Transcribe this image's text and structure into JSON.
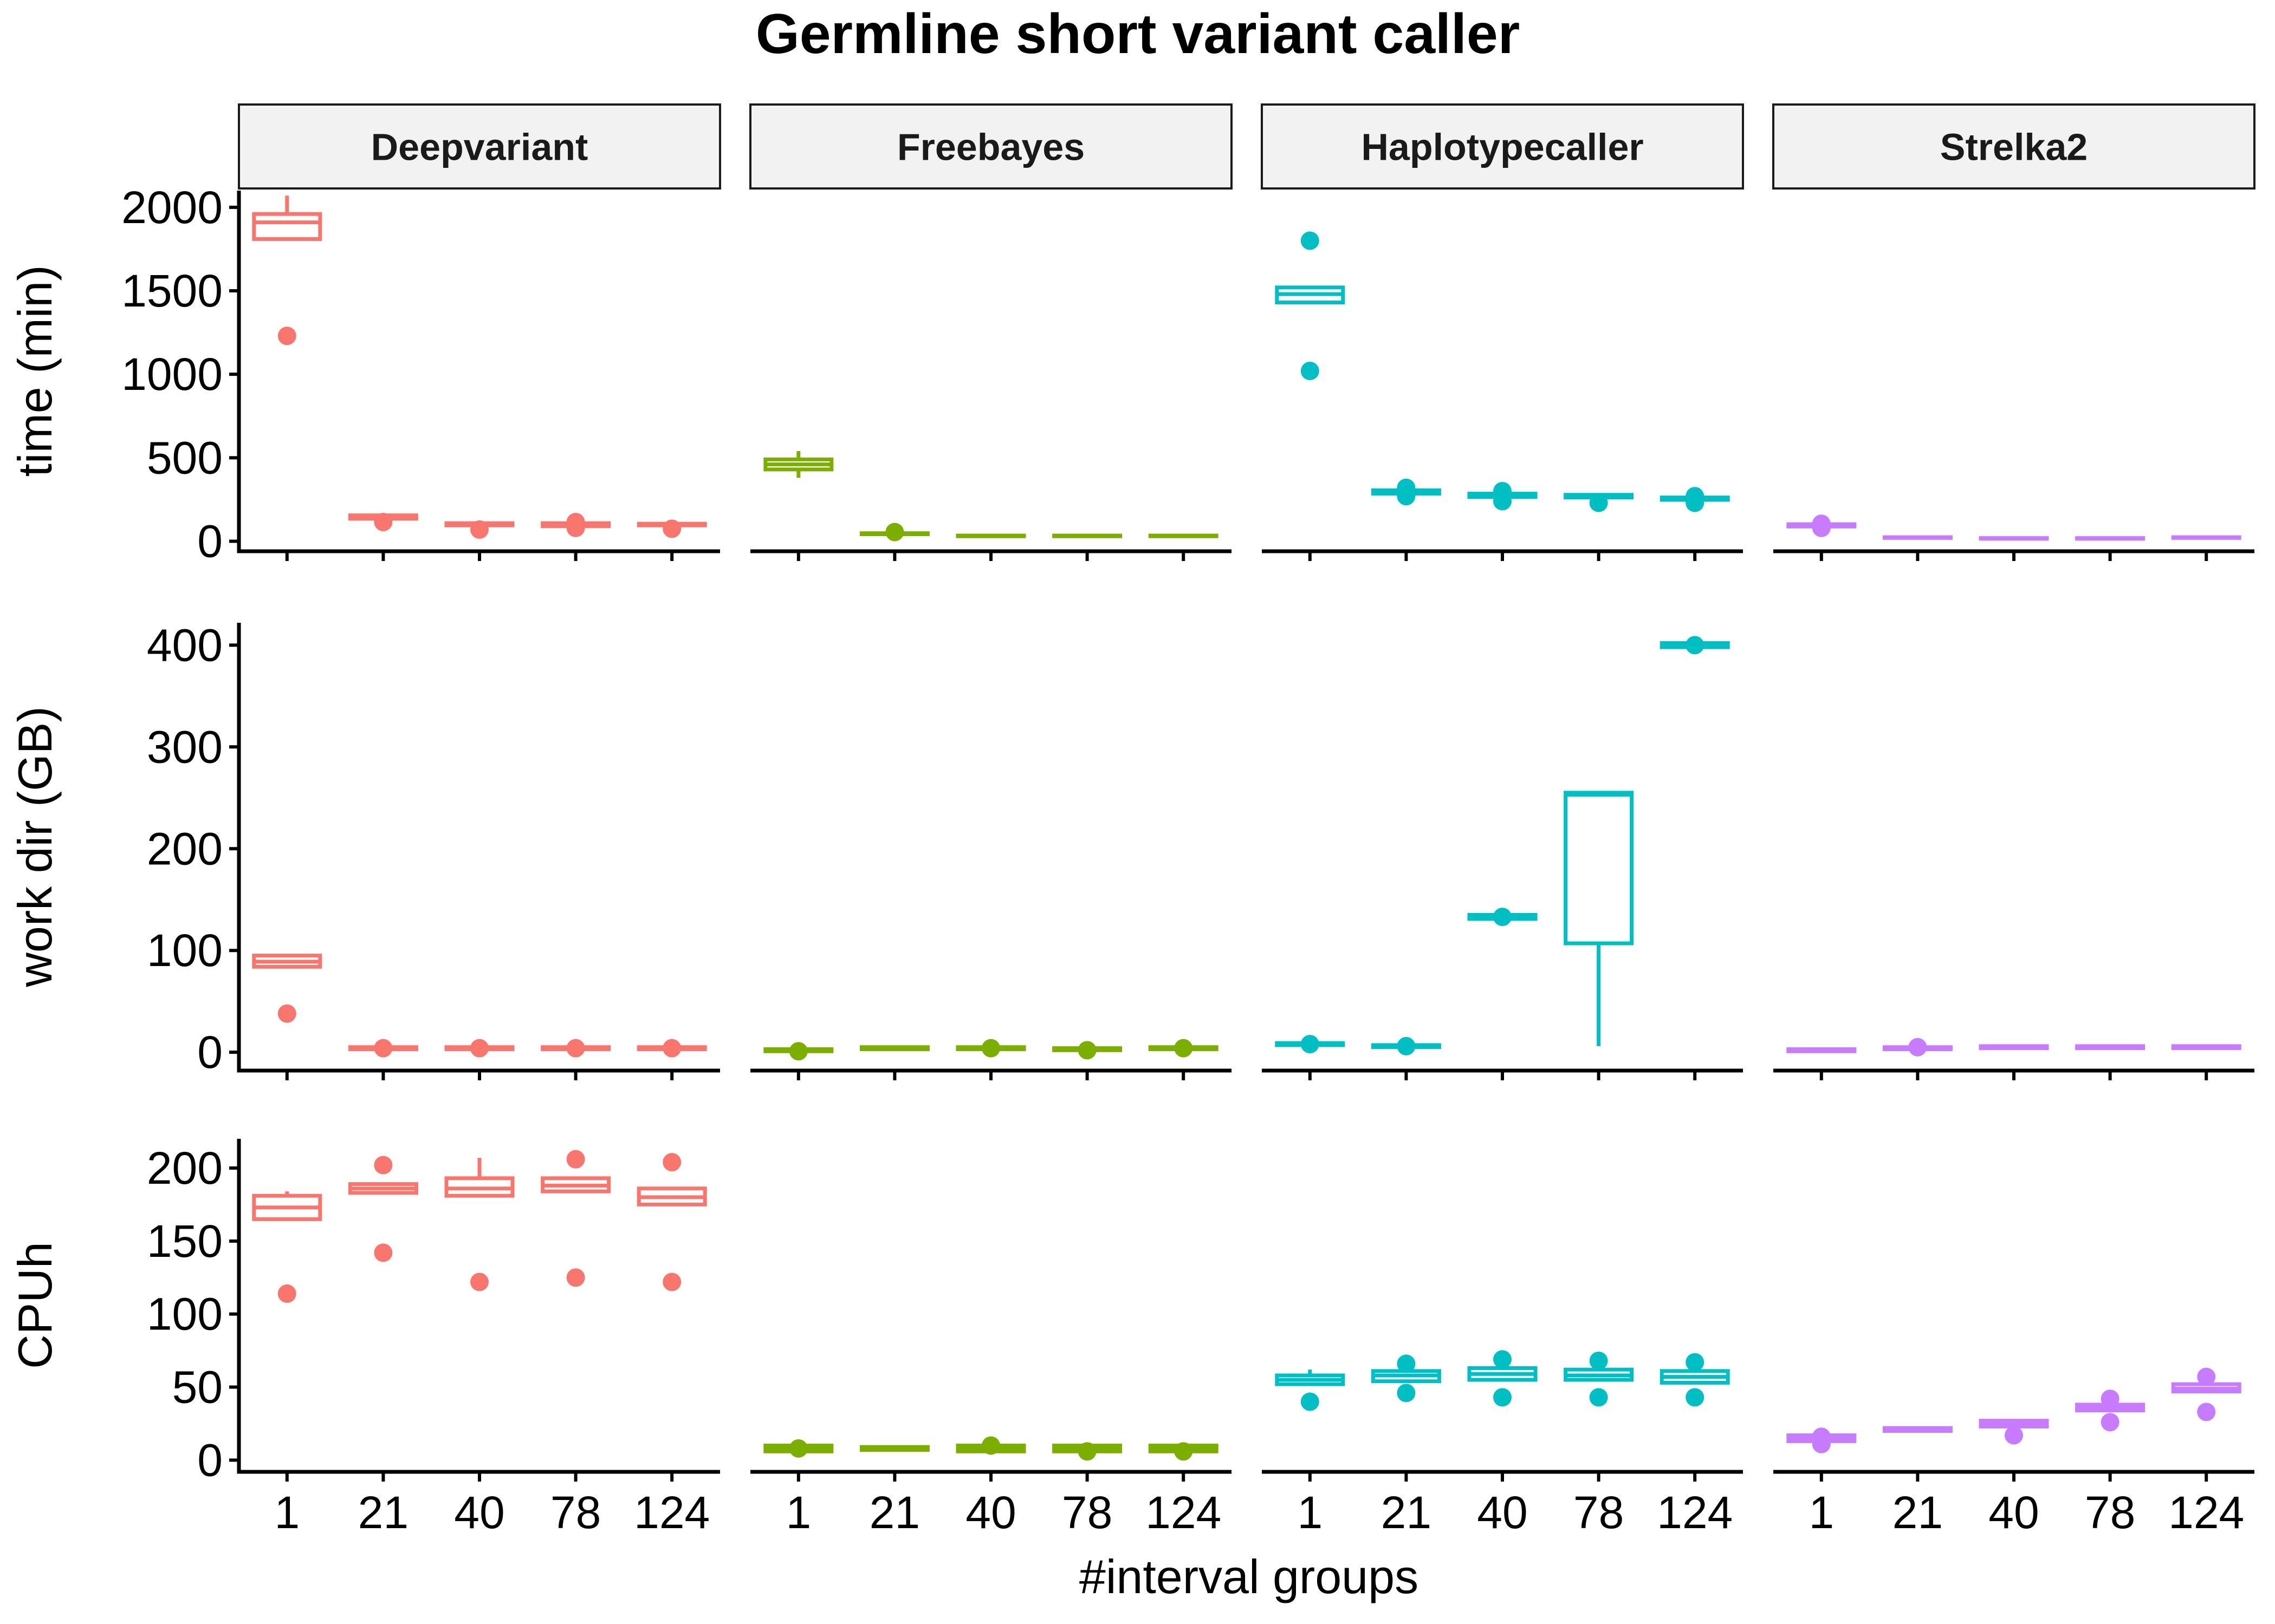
{
  "chart_data": {
    "type": "box",
    "title": "Germline short variant caller",
    "xlabel": "#interval groups",
    "facet_columns": [
      "Deepvariant",
      "Freebayes",
      "Haplotypecaller",
      "Strelka2"
    ],
    "categories": [
      "1",
      "21",
      "40",
      "78",
      "124"
    ],
    "colors": {
      "Deepvariant": "#F8766D",
      "Freebayes": "#7CAE00",
      "Haplotypecaller": "#00BFC4",
      "Strelka2": "#C77CFF"
    },
    "rows": [
      {
        "ylabel": "time (min)",
        "ylim": [
          -60,
          2100
        ],
        "yticks": [
          0,
          500,
          1000,
          1500,
          2000
        ],
        "facets": {
          "Deepvariant": [
            {
              "q1": 1810,
              "med": 1910,
              "q3": 1960,
              "lo": 1810,
              "hi": 2070,
              "out": [
                1230
              ]
            },
            {
              "q1": 135,
              "med": 145,
              "q3": 155,
              "lo": 135,
              "hi": 155,
              "out": [
                115
              ]
            },
            {
              "q1": 95,
              "med": 100,
              "q3": 108,
              "lo": 95,
              "hi": 108,
              "out": [
                70
              ]
            },
            {
              "q1": 90,
              "med": 100,
              "q3": 108,
              "lo": 90,
              "hi": 108,
              "out": [
                80,
                115
              ]
            },
            {
              "q1": 95,
              "med": 100,
              "q3": 105,
              "lo": 95,
              "hi": 105,
              "out": [
                75
              ]
            }
          ],
          "Freebayes": [
            {
              "q1": 430,
              "med": 460,
              "q3": 490,
              "lo": 380,
              "hi": 540,
              "out": []
            },
            {
              "q1": 42,
              "med": 45,
              "q3": 48,
              "lo": 42,
              "hi": 48,
              "out": [
                55
              ]
            },
            {
              "q1": 30,
              "med": 32,
              "q3": 34,
              "lo": 30,
              "hi": 34,
              "out": []
            },
            {
              "q1": 30,
              "med": 32,
              "q3": 34,
              "lo": 30,
              "hi": 34,
              "out": []
            },
            {
              "q1": 30,
              "med": 32,
              "q3": 34,
              "lo": 30,
              "hi": 34,
              "out": []
            }
          ],
          "Haplotypecaller": [
            {
              "q1": 1430,
              "med": 1480,
              "q3": 1520,
              "lo": 1430,
              "hi": 1520,
              "out": [
                1800,
                1020
              ]
            },
            {
              "q1": 285,
              "med": 295,
              "q3": 305,
              "lo": 285,
              "hi": 305,
              "out": [
                320,
                270
              ]
            },
            {
              "q1": 265,
              "med": 275,
              "q3": 285,
              "lo": 265,
              "hi": 285,
              "out": [
                300,
                240
              ]
            },
            {
              "q1": 262,
              "med": 270,
              "q3": 278,
              "lo": 262,
              "hi": 278,
              "out": [
                230
              ]
            },
            {
              "q1": 248,
              "med": 255,
              "q3": 262,
              "lo": 248,
              "hi": 262,
              "out": [
                270,
                230
              ]
            }
          ],
          "Strelka2": [
            {
              "q1": 88,
              "med": 95,
              "q3": 102,
              "lo": 88,
              "hi": 102,
              "out": [
                105,
                80
              ]
            },
            {
              "q1": 20,
              "med": 22,
              "q3": 24,
              "lo": 20,
              "hi": 24,
              "out": []
            },
            {
              "q1": 15,
              "med": 17,
              "q3": 19,
              "lo": 15,
              "hi": 19,
              "out": []
            },
            {
              "q1": 15,
              "med": 17,
              "q3": 19,
              "lo": 15,
              "hi": 19,
              "out": []
            },
            {
              "q1": 20,
              "med": 22,
              "q3": 24,
              "lo": 20,
              "hi": 24,
              "out": []
            }
          ]
        }
      },
      {
        "ylabel": "work dir (GB)",
        "ylim": [
          -18,
          422
        ],
        "yticks": [
          0,
          100,
          200,
          300,
          400
        ],
        "facets": {
          "Deepvariant": [
            {
              "q1": 84,
              "med": 89,
              "q3": 95,
              "lo": 84,
              "hi": 95,
              "out": [
                38
              ]
            },
            {
              "q1": 3,
              "med": 4,
              "q3": 5,
              "lo": 3,
              "hi": 5,
              "out": [
                4
              ]
            },
            {
              "q1": 3,
              "med": 4,
              "q3": 5,
              "lo": 3,
              "hi": 5,
              "out": [
                4
              ]
            },
            {
              "q1": 3,
              "med": 4,
              "q3": 5,
              "lo": 3,
              "hi": 5,
              "out": [
                4
              ]
            },
            {
              "q1": 3,
              "med": 4,
              "q3": 5,
              "lo": 3,
              "hi": 5,
              "out": [
                4
              ]
            }
          ],
          "Freebayes": [
            {
              "q1": 1,
              "med": 2,
              "q3": 3,
              "lo": 1,
              "hi": 3,
              "out": [
                1
              ]
            },
            {
              "q1": 3,
              "med": 4,
              "q3": 5,
              "lo": 3,
              "hi": 5,
              "out": []
            },
            {
              "q1": 3,
              "med": 4,
              "q3": 5,
              "lo": 3,
              "hi": 5,
              "out": [
                4
              ]
            },
            {
              "q1": 2,
              "med": 3,
              "q3": 4,
              "lo": 2,
              "hi": 4,
              "out": [
                2
              ]
            },
            {
              "q1": 3,
              "med": 4,
              "q3": 5,
              "lo": 3,
              "hi": 5,
              "out": [
                4
              ]
            }
          ],
          "Haplotypecaller": [
            {
              "q1": 7,
              "med": 8,
              "q3": 9,
              "lo": 7,
              "hi": 9,
              "out": [
                8
              ]
            },
            {
              "q1": 5,
              "med": 6,
              "q3": 7,
              "lo": 5,
              "hi": 7,
              "out": [
                6
              ]
            },
            {
              "q1": 131,
              "med": 133,
              "q3": 135,
              "lo": 131,
              "hi": 135,
              "out": [
                133
              ]
            },
            {
              "q1": 107,
              "med": 253,
              "q3": 255,
              "lo": 6,
              "hi": 255,
              "out": []
            },
            {
              "q1": 398,
              "med": 400,
              "q3": 402,
              "lo": 398,
              "hi": 402,
              "out": [
                400
              ]
            }
          ],
          "Strelka2": [
            {
              "q1": 1,
              "med": 2,
              "q3": 3,
              "lo": 1,
              "hi": 3,
              "out": []
            },
            {
              "q1": 3,
              "med": 4,
              "q3": 5,
              "lo": 3,
              "hi": 5,
              "out": [
                5
              ]
            },
            {
              "q1": 4,
              "med": 5,
              "q3": 6,
              "lo": 4,
              "hi": 6,
              "out": []
            },
            {
              "q1": 4,
              "med": 5,
              "q3": 6,
              "lo": 4,
              "hi": 6,
              "out": []
            },
            {
              "q1": 4,
              "med": 5,
              "q3": 6,
              "lo": 4,
              "hi": 6,
              "out": []
            }
          ]
        }
      },
      {
        "ylabel": "CPUh",
        "ylim": [
          -8,
          220
        ],
        "yticks": [
          0,
          50,
          100,
          150,
          200
        ],
        "facets": {
          "Deepvariant": [
            {
              "q1": 165,
              "med": 173,
              "q3": 181,
              "lo": 165,
              "hi": 184,
              "out": [
                114
              ]
            },
            {
              "q1": 183,
              "med": 186,
              "q3": 189,
              "lo": 183,
              "hi": 189,
              "out": [
                202,
                142
              ]
            },
            {
              "q1": 181,
              "med": 186,
              "q3": 193,
              "lo": 181,
              "hi": 207,
              "out": [
                122
              ]
            },
            {
              "q1": 184,
              "med": 188,
              "q3": 193,
              "lo": 184,
              "hi": 193,
              "out": [
                206,
                125
              ]
            },
            {
              "q1": 175,
              "med": 180,
              "q3": 186,
              "lo": 175,
              "hi": 186,
              "out": [
                204,
                122
              ]
            }
          ],
          "Freebayes": [
            {
              "q1": 6,
              "med": 8,
              "q3": 10,
              "lo": 6,
              "hi": 10,
              "out": [
                8
              ]
            },
            {
              "q1": 7,
              "med": 8,
              "q3": 9,
              "lo": 7,
              "hi": 9,
              "out": []
            },
            {
              "q1": 6,
              "med": 8,
              "q3": 10,
              "lo": 6,
              "hi": 10,
              "out": [
                10
              ]
            },
            {
              "q1": 6,
              "med": 8,
              "q3": 10,
              "lo": 6,
              "hi": 10,
              "out": [
                6
              ]
            },
            {
              "q1": 6,
              "med": 8,
              "q3": 10,
              "lo": 6,
              "hi": 10,
              "out": [
                6
              ]
            }
          ],
          "Haplotypecaller": [
            {
              "q1": 52,
              "med": 55,
              "q3": 58,
              "lo": 52,
              "hi": 62,
              "out": [
                40
              ]
            },
            {
              "q1": 54,
              "med": 58,
              "q3": 61,
              "lo": 54,
              "hi": 61,
              "out": [
                66,
                46
              ]
            },
            {
              "q1": 55,
              "med": 59,
              "q3": 63,
              "lo": 55,
              "hi": 63,
              "out": [
                69,
                43
              ]
            },
            {
              "q1": 55,
              "med": 58,
              "q3": 62,
              "lo": 55,
              "hi": 62,
              "out": [
                68,
                43
              ]
            },
            {
              "q1": 53,
              "med": 57,
              "q3": 61,
              "lo": 53,
              "hi": 61,
              "out": [
                67,
                43
              ]
            }
          ],
          "Strelka2": [
            {
              "q1": 13,
              "med": 15,
              "q3": 17,
              "lo": 13,
              "hi": 17,
              "out": [
                16,
                11
              ]
            },
            {
              "q1": 20,
              "med": 21,
              "q3": 22,
              "lo": 20,
              "hi": 22,
              "out": []
            },
            {
              "q1": 23,
              "med": 25,
              "q3": 27,
              "lo": 23,
              "hi": 27,
              "out": [
                17
              ]
            },
            {
              "q1": 34,
              "med": 36,
              "q3": 38,
              "lo": 34,
              "hi": 38,
              "out": [
                42,
                26
              ]
            },
            {
              "q1": 47,
              "med": 49,
              "q3": 52,
              "lo": 47,
              "hi": 52,
              "out": [
                57,
                33
              ]
            }
          ]
        }
      }
    ]
  }
}
